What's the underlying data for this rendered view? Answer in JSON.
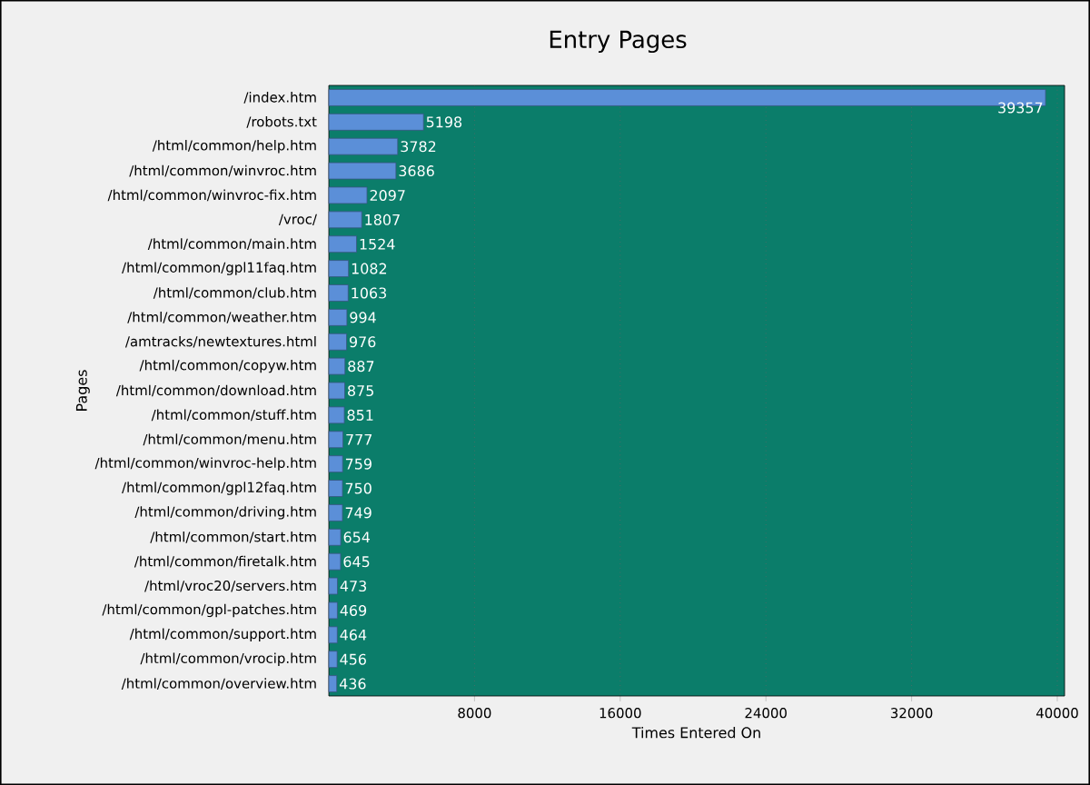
{
  "chart_data": {
    "type": "bar",
    "orientation": "horizontal",
    "title": "Entry Pages",
    "xlabel": "Times Entered On",
    "ylabel": "Pages",
    "categories": [
      "/index.htm",
      "/robots.txt",
      "/html/common/help.htm",
      "/html/common/winvroc.htm",
      "/html/common/winvroc-fix.htm",
      "/vroc/",
      "/html/common/main.htm",
      "/html/common/gpl11faq.htm",
      "/html/common/club.htm",
      "/html/common/weather.htm",
      "/amtracks/newtextures.html",
      "/html/common/copyw.htm",
      "/html/common/download.htm",
      "/html/common/stuff.htm",
      "/html/common/menu.htm",
      "/html/common/winvroc-help.htm",
      "/html/common/gpl12faq.htm",
      "/html/common/driving.htm",
      "/html/common/start.htm",
      "/html/common/firetalk.htm",
      "/html/vroc20/servers.htm",
      "/html/common/gpl-patches.htm",
      "/html/common/support.htm",
      "/html/common/vrocip.htm",
      "/html/common/overview.htm"
    ],
    "values": [
      39357,
      5198,
      3782,
      3686,
      2097,
      1807,
      1524,
      1082,
      1063,
      994,
      976,
      887,
      875,
      851,
      777,
      759,
      750,
      749,
      654,
      645,
      473,
      469,
      464,
      456,
      436
    ],
    "color": "#5b8fd8",
    "xlim": [
      0,
      40400
    ],
    "xticks": [
      8000,
      16000,
      24000,
      32000,
      40000
    ],
    "grid": "x",
    "data_labels": true
  }
}
